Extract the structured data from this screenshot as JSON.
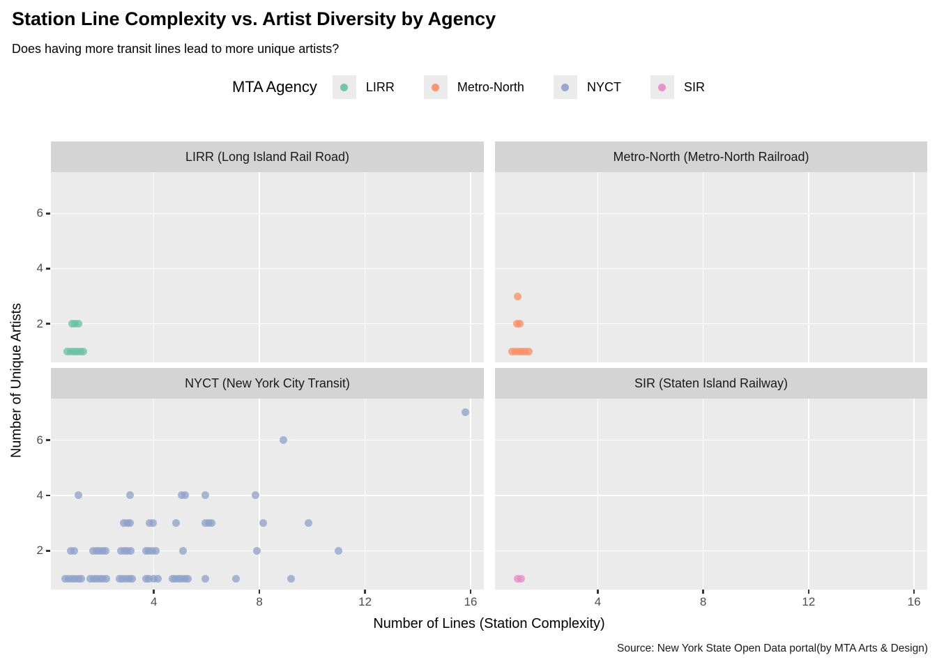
{
  "header": {
    "title": "Station Line Complexity vs. Artist Diversity by Agency",
    "subtitle": "Does having more transit lines lead to more unique artists?"
  },
  "legend": {
    "title": "MTA Agency",
    "position": "top-center",
    "items": [
      {
        "label": "LIRR",
        "color": "#66C2A5"
      },
      {
        "label": "Metro-North",
        "color": "#FC8D62"
      },
      {
        "label": "NYCT",
        "color": "#8DA0CB"
      },
      {
        "label": "SIR",
        "color": "#E78AC3"
      }
    ]
  },
  "axis": {
    "xlabel": "Number of Lines (Station Complexity)",
    "ylabel": "Number of Unique Artists"
  },
  "caption": "Source: New York State Open Data portal(by MTA Arts & Design)",
  "chart_data": {
    "type": "scatter",
    "title": "Station Line Complexity vs. Artist Diversity by Agency",
    "subtitle": "Does having more transit lines lead to more unique artists?",
    "xlabel": "Number of Lines (Station Complexity)",
    "ylabel": "Number of Unique Artists",
    "faceted_by": "MTA Agency",
    "grid": "major-only, white on gray panel",
    "x_ticks": [
      4,
      8,
      12,
      16
    ],
    "y_ticks": [
      2,
      4,
      6
    ],
    "x_domain": [
      0.1,
      16.5
    ],
    "y_domain": [
      0.6,
      7.5
    ],
    "point_opacity": 0.75,
    "note": "Integer data (lines, unique artists) drawn with horizontal jitter; x values below include the jitter as rendered",
    "facets": [
      {
        "id": "lirr",
        "strip_label": "LIRR (Long Island Rail Road)",
        "agency": "LIRR",
        "color": "#66C2A5",
        "points": [
          [
            0.72,
            1
          ],
          [
            0.85,
            1
          ],
          [
            0.98,
            1
          ],
          [
            1.1,
            1
          ],
          [
            1.22,
            1
          ],
          [
            1.34,
            1
          ],
          [
            0.9,
            2
          ],
          [
            1.02,
            2
          ],
          [
            1.14,
            2
          ]
        ]
      },
      {
        "id": "metro-north",
        "strip_label": "Metro-North (Metro-North Railroad)",
        "agency": "Metro-North",
        "color": "#FC8D62",
        "points": [
          [
            0.75,
            1
          ],
          [
            0.88,
            1
          ],
          [
            1.0,
            1
          ],
          [
            1.12,
            1
          ],
          [
            1.25,
            1
          ],
          [
            1.38,
            1
          ],
          [
            0.92,
            2
          ],
          [
            1.04,
            2
          ],
          [
            0.95,
            3
          ]
        ]
      },
      {
        "id": "nyct",
        "strip_label": "NYCT (New York City Transit)",
        "agency": "NYCT",
        "color": "#8DA0CB",
        "points": [
          [
            0.65,
            1
          ],
          [
            0.78,
            1
          ],
          [
            0.9,
            1
          ],
          [
            1.02,
            1
          ],
          [
            1.14,
            1
          ],
          [
            1.26,
            1
          ],
          [
            1.6,
            1
          ],
          [
            1.72,
            1
          ],
          [
            1.84,
            1
          ],
          [
            1.96,
            1
          ],
          [
            2.08,
            1
          ],
          [
            2.2,
            1
          ],
          [
            2.7,
            1
          ],
          [
            2.82,
            1
          ],
          [
            2.94,
            1
          ],
          [
            3.06,
            1
          ],
          [
            3.18,
            1
          ],
          [
            3.7,
            1
          ],
          [
            3.82,
            1
          ],
          [
            4.0,
            1
          ],
          [
            4.15,
            1
          ],
          [
            4.7,
            1
          ],
          [
            4.82,
            1
          ],
          [
            4.94,
            1
          ],
          [
            5.06,
            1
          ],
          [
            5.18,
            1
          ],
          [
            5.3,
            1
          ],
          [
            5.95,
            1
          ],
          [
            7.1,
            1
          ],
          [
            9.2,
            1
          ],
          [
            0.85,
            2
          ],
          [
            0.98,
            2
          ],
          [
            1.7,
            2
          ],
          [
            1.82,
            2
          ],
          [
            1.94,
            2
          ],
          [
            2.06,
            2
          ],
          [
            2.18,
            2
          ],
          [
            2.75,
            2
          ],
          [
            2.88,
            2
          ],
          [
            3.0,
            2
          ],
          [
            3.12,
            2
          ],
          [
            3.7,
            2
          ],
          [
            3.82,
            2
          ],
          [
            3.95,
            2
          ],
          [
            4.08,
            2
          ],
          [
            5.1,
            2
          ],
          [
            7.9,
            2
          ],
          [
            11.0,
            2
          ],
          [
            2.85,
            3
          ],
          [
            2.98,
            3
          ],
          [
            3.1,
            3
          ],
          [
            3.85,
            3
          ],
          [
            3.98,
            3
          ],
          [
            4.85,
            3
          ],
          [
            5.95,
            3
          ],
          [
            6.08,
            3
          ],
          [
            6.2,
            3
          ],
          [
            8.15,
            3
          ],
          [
            9.85,
            3
          ],
          [
            1.15,
            4
          ],
          [
            3.1,
            4
          ],
          [
            5.05,
            4
          ],
          [
            5.18,
            4
          ],
          [
            5.95,
            4
          ],
          [
            7.85,
            4
          ],
          [
            8.9,
            6
          ],
          [
            15.8,
            7
          ]
        ]
      },
      {
        "id": "sir",
        "strip_label": "SIR (Staten Island Railway)",
        "agency": "SIR",
        "color": "#E78AC3",
        "points": [
          [
            0.95,
            1
          ],
          [
            1.08,
            1
          ]
        ]
      }
    ]
  }
}
